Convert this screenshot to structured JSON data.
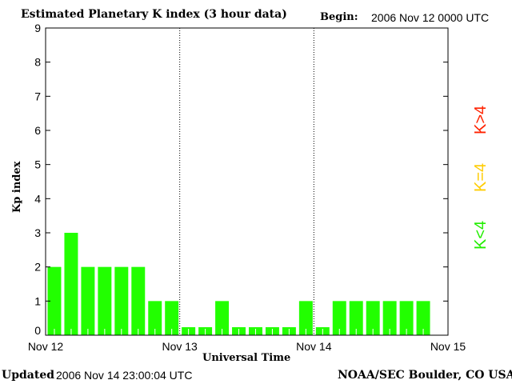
{
  "chart_data": {
    "type": "bar",
    "title": "Estimated Planetary K index (3 hour data)",
    "begin_label": "Begin:",
    "begin_value": "2006 Nov 12 0000 UTC",
    "xlabel": "Universal Time",
    "ylabel": "Kp index",
    "ylim": [
      0,
      9
    ],
    "yticks": [
      "0",
      "1",
      "2",
      "3",
      "4",
      "5",
      "6",
      "7",
      "8",
      "9"
    ],
    "xticks": [
      "Nov 12",
      "Nov 13",
      "Nov 14",
      "Nov 15"
    ],
    "interval_hours": 3,
    "values": [
      2,
      3,
      2,
      2,
      2,
      2,
      1,
      1,
      0,
      0,
      1,
      0,
      0,
      0,
      0,
      1,
      0,
      1,
      1,
      1,
      1,
      1,
      1,
      null
    ],
    "bar_color": "#22ff00",
    "legend": [
      {
        "label": "K<4",
        "color": "#22ee00"
      },
      {
        "label": "K=4",
        "color": "#ffcc00"
      },
      {
        "label": "K>4",
        "color": "#ff2200"
      }
    ]
  },
  "footer": {
    "updated_label": "Updated",
    "updated_value": "2006 Nov 14 23:00:04 UTC",
    "source": "NOAA/SEC Boulder, CO USA"
  }
}
